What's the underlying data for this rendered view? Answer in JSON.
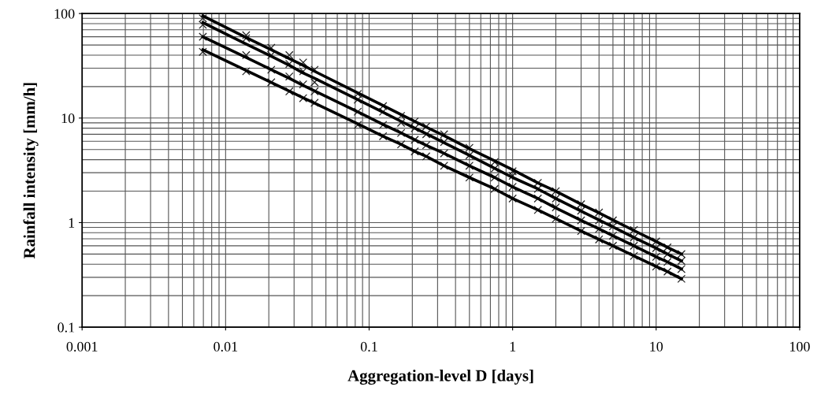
{
  "chart_data": {
    "type": "scatter",
    "xlabel": "Aggregation-level D [days]",
    "ylabel": "Rainfall intensity [mm/h]",
    "log": "xy",
    "grid": true,
    "marker": "cross",
    "xlim": [
      0.001,
      100
    ],
    "xticks": [
      0.001,
      0.01,
      0.1,
      1,
      10,
      100
    ],
    "ylim": [
      0.1,
      100
    ],
    "yticks": [
      0.1,
      1,
      10,
      100
    ],
    "x": [
      0.00694,
      0.0139,
      0.0208,
      0.0278,
      0.0347,
      0.0417,
      0.0833,
      0.125,
      0.167,
      0.208,
      0.25,
      0.333,
      0.5,
      0.75,
      1,
      1.5,
      2,
      3,
      4,
      5,
      7,
      10,
      12,
      15
    ],
    "series": [
      {
        "color": "#222222",
        "values": [
          90,
          62,
          47,
          40,
          34,
          29,
          17,
          13,
          10.5,
          9.3,
          8.3,
          7.0,
          5.2,
          3.8,
          3.1,
          2.4,
          2.0,
          1.5,
          1.25,
          1.05,
          0.85,
          0.66,
          0.58,
          0.5
        ]
      },
      {
        "color": "#222222",
        "values": [
          78,
          58,
          40,
          33,
          28,
          22,
          15,
          11.5,
          9.0,
          8.0,
          7.0,
          5.9,
          4.4,
          3.3,
          2.8,
          2.1,
          1.7,
          1.3,
          1.05,
          0.92,
          0.72,
          0.57,
          0.5,
          0.43
        ]
      },
      {
        "color": "#222222",
        "values": [
          60,
          40,
          29,
          25,
          21,
          18,
          11.5,
          8.6,
          7.2,
          6.2,
          5.5,
          4.6,
          3.5,
          2.7,
          2.2,
          1.7,
          1.4,
          1.05,
          0.87,
          0.75,
          0.6,
          0.47,
          0.42,
          0.36
        ]
      },
      {
        "color": "#222222",
        "values": [
          43,
          28,
          22,
          18,
          15.5,
          14,
          8.6,
          6.7,
          5.6,
          4.8,
          4.3,
          3.5,
          2.7,
          2.1,
          1.7,
          1.32,
          1.09,
          0.83,
          0.69,
          0.6,
          0.48,
          0.38,
          0.34,
          0.29
        ]
      },
      {
        "type": "line",
        "color": "#000000",
        "marker": "none",
        "values": [
          95,
          59,
          45,
          37,
          32,
          28,
          17.4,
          13.2,
          10.8,
          9.3,
          8.2,
          6.8,
          5.1,
          3.9,
          3.2,
          2.4,
          2.0,
          1.5,
          1.24,
          1.06,
          0.84,
          0.66,
          0.58,
          0.5
        ]
      },
      {
        "type": "line",
        "color": "#000000",
        "marker": "none",
        "values": [
          82,
          51,
          39,
          32,
          27,
          24,
          15,
          11.4,
          9.3,
          8.0,
          7.1,
          5.8,
          4.4,
          3.3,
          2.7,
          2.1,
          1.7,
          1.29,
          1.06,
          0.91,
          0.72,
          0.57,
          0.5,
          0.43
        ]
      },
      {
        "type": "line",
        "color": "#000000",
        "marker": "none",
        "values": [
          60,
          38,
          29,
          24,
          20.5,
          18.2,
          11.5,
          8.7,
          7.2,
          6.2,
          5.5,
          4.6,
          3.5,
          2.7,
          2.2,
          1.7,
          1.38,
          1.05,
          0.87,
          0.75,
          0.6,
          0.47,
          0.42,
          0.36
        ]
      },
      {
        "type": "line",
        "color": "#000000",
        "marker": "none",
        "values": [
          45,
          28.5,
          21.9,
          18.1,
          15.6,
          13.9,
          8.8,
          6.7,
          5.6,
          4.8,
          4.3,
          3.5,
          2.7,
          2.1,
          1.7,
          1.32,
          1.09,
          0.83,
          0.69,
          0.6,
          0.48,
          0.38,
          0.34,
          0.29
        ]
      }
    ]
  }
}
